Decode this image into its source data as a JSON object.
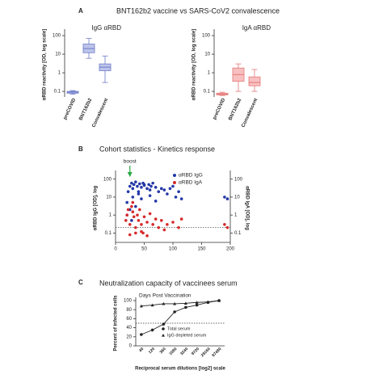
{
  "chart_data": [
    {
      "type": "box",
      "panel": "A",
      "title": "BNT162b2 vaccine vs SARS-CoV2 convalescence",
      "subtitle": "IgG αRBD",
      "ylabel": "αRBD reactivity [OD, log scale]",
      "log_scale": true,
      "ylim": [
        0.05,
        150
      ],
      "yticks": [
        100,
        10,
        1,
        0.1
      ],
      "categories": [
        "preCOVID",
        "BNT162b2",
        "Convalescent"
      ],
      "color": "#6d7bc9",
      "fill": "#bcc4ea",
      "min": [
        0.07,
        6,
        0.3
      ],
      "q1": [
        0.08,
        12,
        1.3
      ],
      "median": [
        0.09,
        20,
        2
      ],
      "q3": [
        0.1,
        35,
        3
      ],
      "max": [
        0.11,
        70,
        8
      ]
    },
    {
      "type": "box",
      "subtitle": "IgA αRBD",
      "ylabel": "αRBD reactivity [OD, log scale]",
      "log_scale": true,
      "ylim": [
        0.05,
        150
      ],
      "yticks": [
        100,
        10,
        1,
        0.1
      ],
      "categories": [
        "preCOVID",
        "BNT162b2",
        "Convalescent"
      ],
      "color": "#e57777",
      "fill": "#f8c0c0",
      "min": [
        0.06,
        0.1,
        0.1
      ],
      "q1": [
        0.065,
        0.35,
        0.2
      ],
      "median": [
        0.07,
        0.8,
        0.3
      ],
      "q3": [
        0.08,
        1.8,
        0.6
      ],
      "max": [
        0.09,
        3,
        1.5
      ]
    },
    {
      "type": "scatter",
      "panel": "B",
      "title": "Cohort statistics - Kinetics response",
      "ylabel": "αRBD IgG [OD], log",
      "y2label": "αRBD IgA [OD], log",
      "log_scale": true,
      "xlim": [
        0,
        200
      ],
      "xticks": [
        0,
        50,
        100,
        150,
        200
      ],
      "ylim": [
        0.03,
        200
      ],
      "yticks": [
        100,
        10,
        1,
        0.1
      ],
      "y2lim": [
        0.03,
        200
      ],
      "y2ticks": [
        100,
        10,
        1,
        0.1
      ],
      "reference_line": 0.2,
      "annotation": {
        "text": "boost",
        "x": 25,
        "color": "#2aa844"
      },
      "series": [
        {
          "name": "αRBD IgG",
          "color": "#2438a6",
          "x": [
            20,
            22,
            25,
            28,
            30,
            32,
            35,
            38,
            40,
            42,
            45,
            48,
            50,
            55,
            58,
            60,
            62,
            65,
            70,
            75,
            80,
            85,
            90,
            95,
            100,
            105,
            110,
            115,
            25,
            30,
            35,
            40,
            45,
            50,
            60,
            70,
            190,
            195,
            20,
            28
          ],
          "values": [
            5,
            20,
            40,
            60,
            30,
            50,
            70,
            40,
            20,
            55,
            35,
            60,
            45,
            30,
            50,
            25,
            40,
            60,
            35,
            20,
            30,
            25,
            15,
            30,
            40,
            10,
            20,
            8,
            2,
            10,
            3,
            15,
            8,
            50,
            12,
            6,
            10,
            8,
            1,
            0.5
          ]
        },
        {
          "name": "αRBD IgA",
          "color": "#d62a2a",
          "axis": "y2",
          "x": [
            18,
            20,
            22,
            25,
            28,
            30,
            32,
            35,
            38,
            40,
            42,
            45,
            48,
            50,
            55,
            60,
            65,
            70,
            75,
            80,
            85,
            90,
            100,
            110,
            115,
            190,
            195,
            25,
            35,
            45,
            55,
            30
          ],
          "values": [
            0.5,
            1,
            2,
            0.3,
            3,
            1.5,
            0.8,
            0.2,
            1,
            0.5,
            2,
            0.3,
            0.1,
            0.8,
            0.4,
            1.2,
            0.3,
            0.6,
            0.2,
            0.5,
            0.15,
            0.3,
            0.4,
            0.2,
            0.6,
            0.3,
            0.2,
            0.08,
            0.1,
            0.12,
            0.07,
            5
          ]
        }
      ]
    },
    {
      "type": "line",
      "panel": "C",
      "title": "Neutralization capacity of vaccinees serum",
      "subtitle": "Days Post Vaccination",
      "ylabel": "Percent of infected cells",
      "xlabel": "Reciprocal serum dilutions [log2] scale",
      "categories": [
        "40",
        "120",
        "360",
        "1080",
        "3240",
        "9720",
        "29160",
        "87480"
      ],
      "ylim": [
        0,
        100
      ],
      "yticks": [
        0,
        20,
        40,
        60,
        80,
        100
      ],
      "reference_line": 50,
      "series": [
        {
          "name": "Total serum",
          "color": "#222",
          "marker": "circle",
          "values": [
            25,
            35,
            48,
            75,
            85,
            90,
            96,
            100
          ]
        },
        {
          "name": "IgG depleted serum",
          "color": "#222",
          "marker": "triangle",
          "values": [
            88,
            90,
            93,
            93,
            94,
            96,
            97,
            100
          ]
        }
      ]
    }
  ]
}
